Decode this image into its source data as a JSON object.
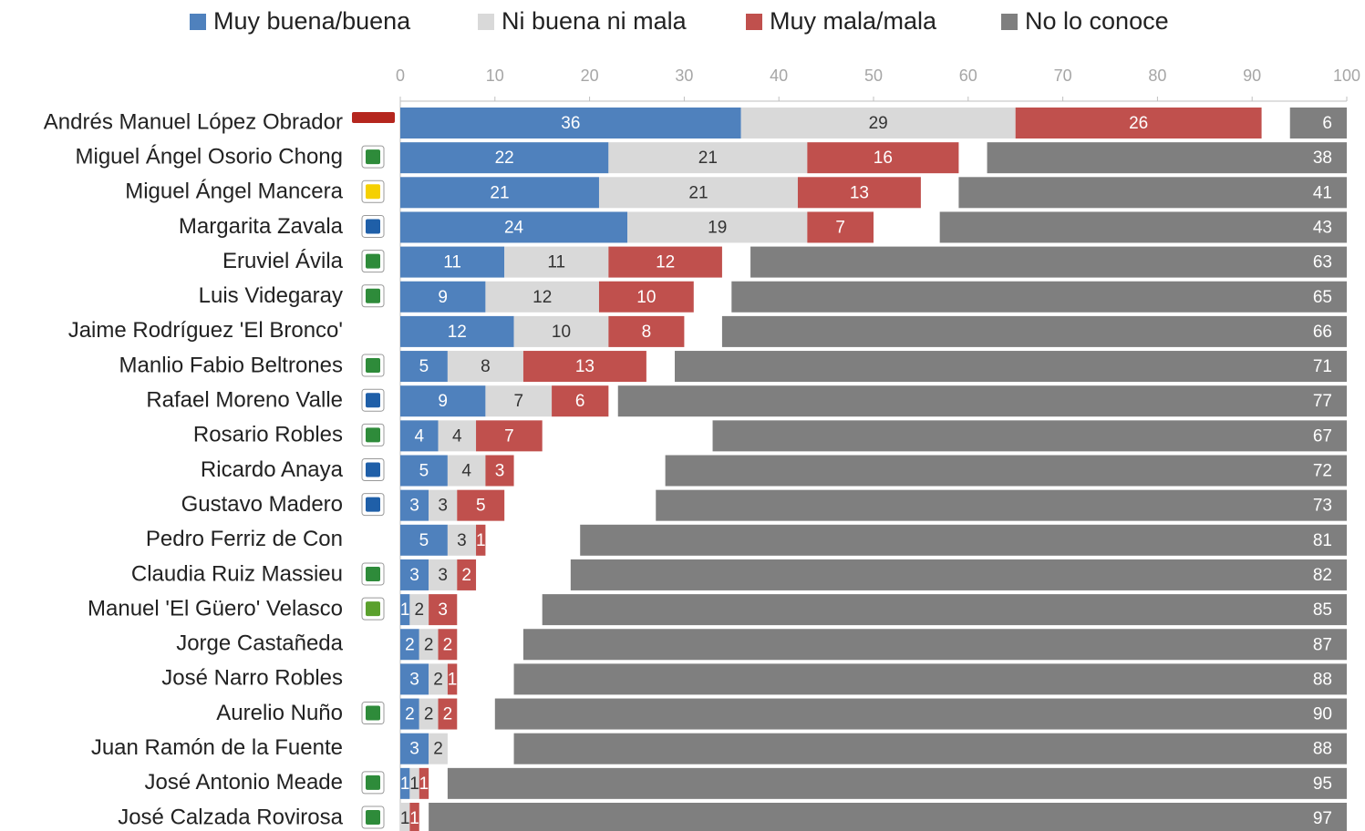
{
  "chart_data": {
    "type": "stacked_bar_horizontal",
    "categories": [
      "Andrés Manuel López Obrador",
      "Miguel Ángel Osorio Chong",
      "Miguel Ángel Mancera",
      "Margarita Zavala",
      "Eruviel Ávila",
      "Luis Videgaray",
      "Jaime Rodríguez 'El Bronco'",
      "Manlio Fabio Beltrones",
      "Rafael Moreno Valle",
      "Rosario Robles",
      "Ricardo Anaya",
      "Gustavo Madero",
      "Pedro Ferriz de Con",
      "Claudia Ruiz Massieu",
      "Manuel 'El Güero' Velasco",
      "Jorge Castañeda",
      "José Narro Robles",
      "Aurelio Nuño",
      "Juan Ramón de la Fuente",
      "José Antonio Meade",
      "José Calzada Rovirosa"
    ],
    "series": [
      {
        "name": "Muy buena/buena",
        "color": "#4f81bd",
        "values": [
          36,
          22,
          21,
          24,
          11,
          9,
          12,
          5,
          9,
          4,
          5,
          3,
          5,
          3,
          1,
          2,
          3,
          2,
          3,
          1,
          null
        ]
      },
      {
        "name": "Ni buena ni mala",
        "color": "#d9d9d9",
        "values": [
          29,
          21,
          21,
          19,
          11,
          12,
          10,
          8,
          7,
          4,
          4,
          3,
          3,
          3,
          2,
          2,
          2,
          2,
          2,
          1,
          1
        ]
      },
      {
        "name": "Muy mala/mala",
        "color": "#c0504d",
        "values": [
          26,
          16,
          13,
          7,
          12,
          10,
          8,
          13,
          6,
          7,
          3,
          5,
          1,
          2,
          3,
          2,
          1,
          2,
          null,
          1,
          1
        ]
      },
      {
        "name": "No lo conoce",
        "color": "#7f7f7f",
        "anchor": "end",
        "values": [
          6,
          38,
          41,
          43,
          63,
          65,
          66,
          71,
          77,
          67,
          72,
          73,
          81,
          82,
          85,
          87,
          88,
          90,
          88,
          95,
          97
        ]
      }
    ],
    "xlim": [
      0,
      100
    ],
    "xticks": [
      0,
      10,
      20,
      30,
      40,
      50,
      60,
      70,
      80,
      90,
      100
    ]
  }
}
